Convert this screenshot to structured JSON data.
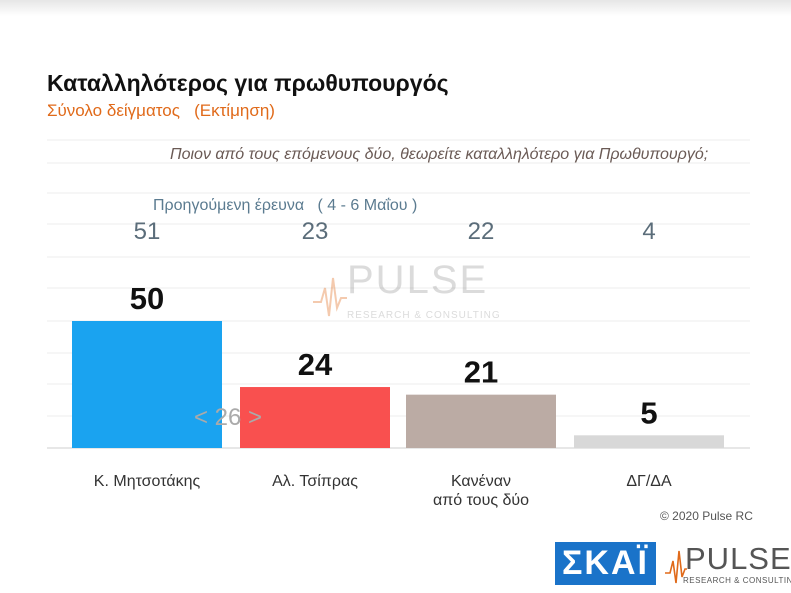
{
  "title": "Καταλληλότερος για πρωθυπουργός",
  "subtitle": "Σύνολο δείγματος   (Εκτίμηση)",
  "question": "Ποιον από τους επόμενους δύο, θεωρείτε καταλληλότερο για Πρωθυπουργό;",
  "previous_survey_label": "Προηγούμενη έρευνα   ( 4 - 6 Μαΐου )",
  "difference_label": "< 26 >",
  "copyright": "© 2020 Pulse RC",
  "logos": {
    "skai": "ΣΚΑΪ",
    "pulse": "PULSE",
    "pulse_sub": "RESEARCH & CONSULTING"
  },
  "watermark": {
    "word": "PULSE",
    "sub": "RESEARCH & CONSULTING"
  },
  "chart_data": {
    "type": "bar",
    "title": "Καταλληλότερος για πρωθυπουργός",
    "categories": [
      "Κ. Μητσοτάκης",
      "Αλ. Τσίπρας",
      "Κανέναν από τους δύο",
      "ΔΓ/ΔΑ"
    ],
    "category_lines": [
      [
        "Κ. Μητσοτάκης"
      ],
      [
        "Αλ. Τσίπρας"
      ],
      [
        "Κανέναν",
        "από τους δύο"
      ],
      [
        "ΔΓ/ΔΑ"
      ]
    ],
    "values": [
      50,
      24,
      21,
      5
    ],
    "previous_values": [
      51,
      23,
      22,
      4
    ],
    "colors": [
      "#1aa3f0",
      "#f9504f",
      "#bbaba4",
      "#d8d8d8"
    ],
    "ylim": [
      0,
      50
    ],
    "grid": true
  }
}
